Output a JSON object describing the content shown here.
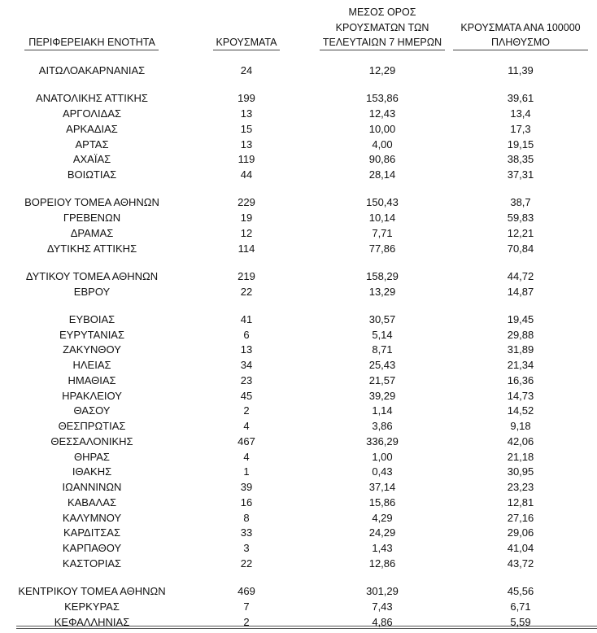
{
  "table": {
    "header": [
      [
        "ΠΕΡΙΦΕΡΕΙΑΚΗ ΕΝΟΤΗΤΑ"
      ],
      [
        "ΚΡΟΥΣΜΑΤΑ"
      ],
      [
        "ΜΕΣΟΣ ΟΡΟΣ",
        "ΚΡΟΥΣΜΑΤΩΝ ΤΩΝ",
        "ΤΕΛΕΥΤΑΙΩΝ 7 ΗΜΕΡΩΝ"
      ],
      [
        "ΚΡΟΥΣΜΑΤΑ ΑΝΑ 100000",
        "ΠΛΗΘΥΣΜΟ"
      ]
    ],
    "rows": [
      [
        "ΑΙΤΩΛΟΑΚΑΡΝΑΝΙΑΣ",
        "24",
        "12,29",
        "11,39"
      ],
      [
        "ΑΝΑΤΟΛΙΚΗΣ ΑΤΤΙΚΗΣ",
        "199",
        "153,86",
        "39,61"
      ],
      [
        "ΑΡΓΟΛΙΔΑΣ",
        "13",
        "12,43",
        "13,4"
      ],
      [
        "ΑΡΚΑΔΙΑΣ",
        "15",
        "10,00",
        "17,3"
      ],
      [
        "ΑΡΤΑΣ",
        "13",
        "4,00",
        "19,15"
      ],
      [
        "ΑΧΑΪΑΣ",
        "119",
        "90,86",
        "38,35"
      ],
      [
        "ΒΟΙΩΤΙΑΣ",
        "44",
        "28,14",
        "37,31"
      ],
      [
        "ΒΟΡΕΙΟΥ ΤΟΜΕΑ ΑΘΗΝΩΝ",
        "229",
        "150,43",
        "38,7"
      ],
      [
        "ΓΡΕΒΕΝΩΝ",
        "19",
        "10,14",
        "59,83"
      ],
      [
        "ΔΡΑΜΑΣ",
        "12",
        "7,71",
        "12,21"
      ],
      [
        "ΔΥΤΙΚΗΣ ΑΤΤΙΚΗΣ",
        "114",
        "77,86",
        "70,84"
      ],
      [
        "ΔΥΤΙΚΟΥ ΤΟΜΕΑ ΑΘΗΝΩΝ",
        "219",
        "158,29",
        "44,72"
      ],
      [
        "ΕΒΡΟΥ",
        "22",
        "13,29",
        "14,87"
      ],
      [
        "ΕΥΒΟΙΑΣ",
        "41",
        "30,57",
        "19,45"
      ],
      [
        "ΕΥΡΥΤΑΝΙΑΣ",
        "6",
        "5,14",
        "29,88"
      ],
      [
        "ΖΑΚΥΝΘΟΥ",
        "13",
        "8,71",
        "31,89"
      ],
      [
        "ΗΛΕΙΑΣ",
        "34",
        "25,43",
        "21,34"
      ],
      [
        "ΗΜΑΘΙΑΣ",
        "23",
        "21,57",
        "16,36"
      ],
      [
        "ΗΡΑΚΛΕΙΟΥ",
        "45",
        "39,29",
        "14,73"
      ],
      [
        "ΘΑΣΟΥ",
        "2",
        "1,14",
        "14,52"
      ],
      [
        "ΘΕΣΠΡΩΤΙΑΣ",
        "4",
        "3,86",
        "9,18"
      ],
      [
        "ΘΕΣΣΑΛΟΝΙΚΗΣ",
        "467",
        "336,29",
        "42,06"
      ],
      [
        "ΘΗΡΑΣ",
        "4",
        "1,00",
        "21,18"
      ],
      [
        "ΙΘΑΚΗΣ",
        "1",
        "0,43",
        "30,95"
      ],
      [
        "ΙΩΑΝΝΙΝΩΝ",
        "39",
        "37,14",
        "23,23"
      ],
      [
        "ΚΑΒΑΛΑΣ",
        "16",
        "15,86",
        "12,81"
      ],
      [
        "ΚΑΛΥΜΝΟΥ",
        "8",
        "4,29",
        "27,16"
      ],
      [
        "ΚΑΡΔΙΤΣΑΣ",
        "33",
        "24,29",
        "29,06"
      ],
      [
        "ΚΑΡΠΑΘΟΥ",
        "3",
        "1,43",
        "41,04"
      ],
      [
        "ΚΑΣΤΟΡΙΑΣ",
        "22",
        "12,86",
        "43,72"
      ],
      [
        "ΚΕΝΤΡΙΚΟΥ ΤΟΜΕΑ ΑΘΗΝΩΝ",
        "469",
        "301,29",
        "45,56"
      ],
      [
        "ΚΕΡΚΥΡΑΣ",
        "7",
        "7,43",
        "6,71"
      ],
      [
        "ΚΕΦΑΛΛΗΝΙΑΣ",
        "2",
        "4,86",
        "5,59"
      ]
    ]
  }
}
